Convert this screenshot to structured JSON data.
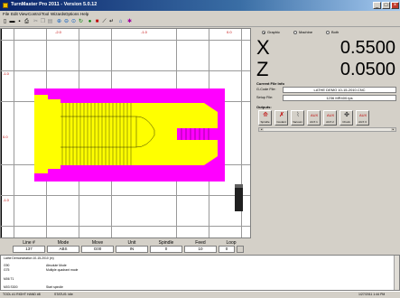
{
  "window": {
    "title": "TurnMaster Pro 2011 - Version 5.0.12"
  },
  "menu": [
    "File",
    "Edit",
    "View",
    "Control",
    "Tool",
    "Wizards",
    "Options",
    "Help"
  ],
  "toolbar_icons": [
    "new-file-icon",
    "open-folder-icon",
    "save-icon",
    "print-icon",
    "cut-icon",
    "copy-icon",
    "paste-icon",
    "zoom-in-icon",
    "zoom-out-icon",
    "zoom-fit-icon",
    "refresh-icon",
    "run-icon",
    "stop-icon",
    "measure-icon",
    "arrow-icon",
    "home-icon",
    "settings-icon"
  ],
  "graphics": {
    "top_labels": [
      "-2.0",
      "-1.0",
      "0.0"
    ],
    "left_labels": [
      "-1.0",
      "0.0",
      "-1.0"
    ],
    "bottom_label": "-1.0"
  },
  "view_mode": {
    "options": [
      "Graphic",
      "Machine",
      "Both"
    ],
    "selected": "Graphic"
  },
  "dro": {
    "x_label": "X",
    "x_value": "0.5500",
    "z_label": "Z",
    "z_value": "0.0500"
  },
  "current_file": {
    "heading": "Current File Info",
    "gcode_label": "G-Code File:",
    "gcode_value": "LATHE DEMO 10-15-2010.CNC",
    "setup_label": "Setup File:",
    "setup_value": "1236 MR400.tps"
  },
  "outputs": {
    "heading": "Outputs:",
    "buttons": [
      {
        "label": "Spindle",
        "icon": "spindle-icon"
      },
      {
        "label": "Coolant",
        "icon": "coolant-icon"
      },
      {
        "label": "Vacuum",
        "icon": "vacuum-icon"
      },
      {
        "label": "AUX 1",
        "icon": "aux1-icon"
      },
      {
        "label": "AUX 2",
        "icon": "aux2-icon"
      },
      {
        "label": "Chuck",
        "icon": "chuck-icon"
      },
      {
        "label": "AUX 3",
        "icon": "aux3-icon"
      }
    ]
  },
  "status_grid": {
    "headers": [
      "Line #",
      "Mode",
      "Move",
      "Unit",
      "Spindle",
      "Feed",
      "Loop"
    ],
    "values": [
      "137",
      "ABS",
      "G00",
      "IN",
      "0",
      "10",
      "0"
    ]
  },
  "listing": [
    {
      "code": "Lathe Demonstration 10-15-2010 (in)",
      "comment": ""
    },
    {
      "code": "G90",
      "comment": "Absolute Mode"
    },
    {
      "code": "G75",
      "comment": "Multiple quadrant mode"
    },
    {
      "code": "",
      "comment": ""
    },
    {
      "code": "M06 T1",
      "comment": ""
    },
    {
      "code": "",
      "comment": ""
    },
    {
      "code": "M03 S300",
      "comment": "Start spindle"
    }
  ],
  "statusbar": {
    "left": "TOOL #1 RIGHT HAND #8",
    "mid": "STATUS: Idle",
    "time": "1/27/2011   1:44 PM"
  },
  "colors": {
    "stock": "#ffff00",
    "toolpath": "#ff00ff",
    "title_start": "#0a246a",
    "title_end": "#a6caf0"
  }
}
